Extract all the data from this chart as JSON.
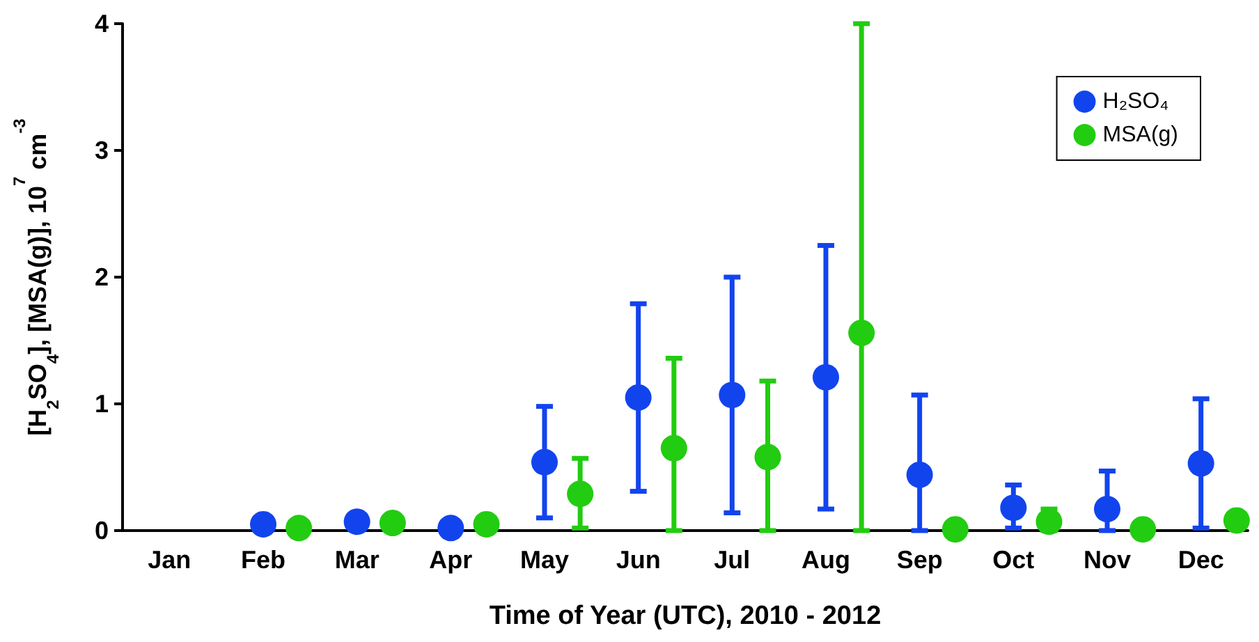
{
  "chart_data": {
    "type": "scatter",
    "xlabel": "Time of Year (UTC), 2010 - 2012",
    "ylabel": "[H$_{2}$SO$_{4}$], [MSA(g)], 10$^{7}$ cm$^{-3}$",
    "categories": [
      "Jan",
      "Feb",
      "Mar",
      "Apr",
      "May",
      "Jun",
      "Jul",
      "Aug",
      "Sep",
      "Oct",
      "Nov",
      "Dec"
    ],
    "series": [
      {
        "name": "H₂SO₄",
        "color": "#1244ee",
        "values": [
          null,
          0.05,
          0.07,
          0.02,
          0.54,
          1.05,
          1.07,
          1.21,
          0.44,
          0.18,
          0.17,
          0.53
        ],
        "errors": [
          null,
          null,
          null,
          null,
          [
            0.1,
            0.98
          ],
          [
            0.31,
            1.79
          ],
          [
            0.14,
            2.0
          ],
          [
            0.17,
            2.25
          ],
          [
            0,
            1.07
          ],
          [
            0.02,
            0.36
          ],
          [
            0,
            0.47
          ],
          [
            0.02,
            1.04
          ]
        ]
      },
      {
        "name": "MSA(g)",
        "color": "#22cc11",
        "values": [
          null,
          0.02,
          0.06,
          0.05,
          0.29,
          0.65,
          0.58,
          1.56,
          0.01,
          0.07,
          0.01,
          0.08
        ],
        "errors": [
          null,
          null,
          null,
          null,
          [
            0.02,
            0.57
          ],
          [
            0,
            1.36
          ],
          [
            0,
            1.18
          ],
          [
            0,
            4.0
          ],
          null,
          [
            0,
            0.17
          ],
          null,
          null
        ]
      }
    ],
    "ylim": [
      0,
      4
    ],
    "yticks": [
      0,
      1,
      2,
      3,
      4
    ],
    "grid": false,
    "legend": "top right",
    "marker": "circle"
  }
}
